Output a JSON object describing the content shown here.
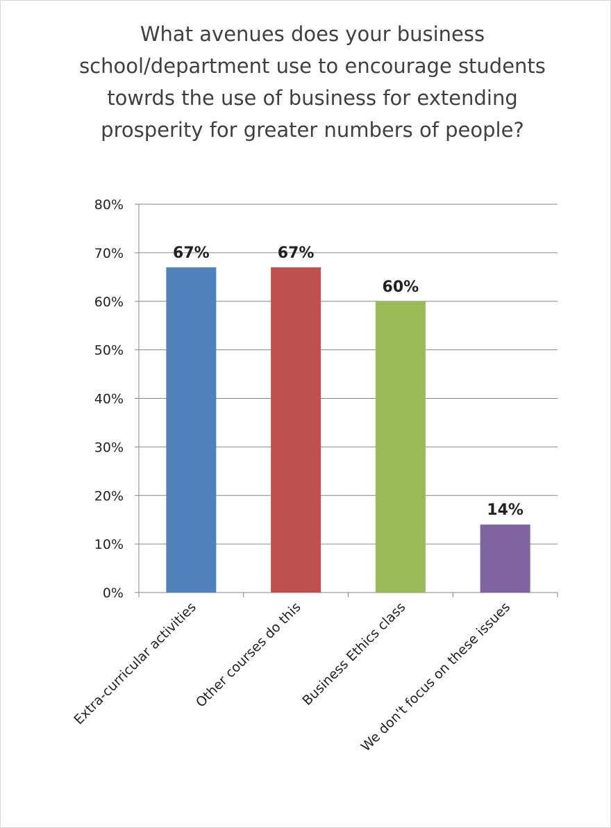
{
  "chart_data": {
    "type": "bar",
    "title": "What avenues does your business school/department use to encourage students towrds the use of business for extending prosperity for greater numbers of people?",
    "categories": [
      "Extra-curricular activities",
      "Other courses do this",
      "Business Ethics class",
      "We don't focus on these issues"
    ],
    "values": [
      67,
      67,
      60,
      14
    ],
    "value_labels": [
      "67%",
      "67%",
      "60%",
      "14%"
    ],
    "colors": [
      "#4f81bd",
      "#c0504d",
      "#9bbb59",
      "#8064a2"
    ],
    "ylim": [
      0,
      80
    ],
    "yticks": [
      {
        "value": 0,
        "label": "0%"
      },
      {
        "value": 10,
        "label": "10%"
      },
      {
        "value": 20,
        "label": "20%"
      },
      {
        "value": 30,
        "label": "30%"
      },
      {
        "value": 40,
        "label": "40%"
      },
      {
        "value": 50,
        "label": "50%"
      },
      {
        "value": 60,
        "label": "60%"
      },
      {
        "value": 70,
        "label": "70%"
      },
      {
        "value": 80,
        "label": "80%"
      }
    ],
    "grid": true
  }
}
